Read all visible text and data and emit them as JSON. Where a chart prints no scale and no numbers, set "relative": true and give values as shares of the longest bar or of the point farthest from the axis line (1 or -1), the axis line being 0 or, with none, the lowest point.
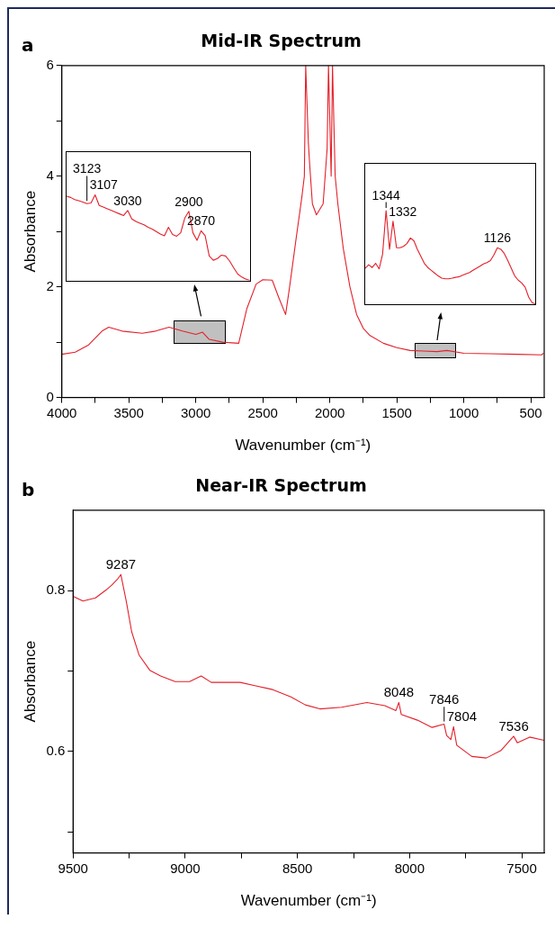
{
  "chart_data": [
    {
      "type": "line",
      "title": "Mid-IR Spectrum",
      "annotations": [
        "a"
      ],
      "xlabel": "Wavenumber (cm⁻¹)",
      "ylabel": "Absorbance",
      "marker": "none",
      "x": [
        4000,
        3900,
        3800,
        3700,
        3650,
        3550,
        3400,
        3300,
        3200,
        3100,
        3000,
        2950,
        2900,
        2800,
        2680,
        2620,
        2550,
        2500,
        2430,
        2380,
        2330,
        2300,
        2250,
        2210,
        2190,
        2180,
        2160,
        2150,
        2130,
        2100,
        2050,
        2020,
        2010,
        1990,
        1980,
        1960,
        1940,
        1900,
        1850,
        1800,
        1750,
        1700,
        1600,
        1500,
        1400,
        1300,
        1200,
        1126,
        1000,
        800,
        600,
        420,
        405
      ],
      "series": [
        {
          "color": "#e4202a",
          "values": [
            0.78,
            0.82,
            0.95,
            1.2,
            1.27,
            1.2,
            1.16,
            1.2,
            1.27,
            1.2,
            1.14,
            1.18,
            1.05,
            1.0,
            0.98,
            1.6,
            2.05,
            2.13,
            2.12,
            1.8,
            1.5,
            2.0,
            2.9,
            3.6,
            4.0,
            6,
            4.6,
            4.2,
            3.5,
            3.3,
            3.5,
            4.5,
            6,
            4.0,
            6,
            4.0,
            3.5,
            2.7,
            2.0,
            1.5,
            1.25,
            1.12,
            0.98,
            0.9,
            0.85,
            0.84,
            0.83,
            0.85,
            0.8,
            0.79,
            0.78,
            0.77,
            0.8
          ]
        }
      ],
      "xlim": [
        4000,
        400
      ],
      "ylim": [
        0,
        6
      ],
      "xticks": [
        4000,
        {
          "value": 3750,
          "label": null
        },
        3500,
        {
          "value": 3250,
          "label": null
        },
        3000,
        {
          "value": 2750,
          "label": null
        },
        2500,
        {
          "value": 2250,
          "label": null
        },
        2000,
        {
          "value": 1750,
          "label": null
        },
        1500,
        {
          "value": 1250,
          "label": null
        },
        1000,
        {
          "value": 750,
          "label": null
        },
        500
      ],
      "yticks": [
        0,
        {
          "value": 1,
          "label": null
        },
        2,
        {
          "value": 3,
          "label": null
        },
        4,
        {
          "value": 5,
          "label": null
        },
        6
      ]
    },
    {
      "type": "line",
      "relative": true,
      "marker": "none",
      "categories": [
        null,
        null,
        null,
        null,
        null,
        null,
        null,
        null,
        null,
        null,
        null,
        null,
        null,
        null,
        null,
        null,
        null,
        null,
        null,
        null,
        null,
        null,
        null,
        null,
        null,
        null,
        null,
        null,
        null,
        null,
        null,
        null,
        null,
        null,
        null,
        null,
        null,
        null,
        null,
        null,
        null,
        null,
        null,
        null,
        null,
        null
      ],
      "series": [
        {
          "color": "#e4202a",
          "values": [
            0.985,
            0.97,
            0.946,
            0.931,
            0.916,
            0.897,
            0.906,
            1,
            0.877,
            0.857,
            0.837,
            0.818,
            0.798,
            0.778,
            0.759,
            0.818,
            0.719,
            0.69,
            0.67,
            0.65,
            0.621,
            0.601,
            0.571,
            0.542,
            0.522,
            0.621,
            0.537,
            0.517,
            0.557,
            0.729,
            0.808,
            0.557,
            0.468,
            0.581,
            0.522,
            0.286,
            0.236,
            0.256,
            0.296,
            0.286,
            0.227,
            0.148,
            0.074,
            0.039,
            0.015,
            0
          ]
        }
      ],
      "annotations": [
        "3123",
        "3107",
        "3030",
        "2900",
        "2870"
      ]
    },
    {
      "type": "line",
      "relative": true,
      "marker": "none",
      "categories": [
        null,
        null,
        null,
        null,
        null,
        null,
        null,
        null,
        null,
        null,
        null,
        null,
        null,
        null,
        null,
        null,
        null,
        null,
        null,
        null,
        null,
        null,
        null,
        null,
        null,
        null,
        null,
        null,
        null,
        null,
        null,
        null,
        null,
        null,
        null,
        null,
        null,
        null,
        null,
        null,
        null,
        null,
        null,
        null,
        null,
        null,
        null,
        null,
        null,
        null
      ],
      "series": [
        {
          "color": "#e4202a",
          "values": [
            0.383,
            0.421,
            0.391,
            0.436,
            0.376,
            0.534,
            1,
            0.586,
            0.887,
            0.602,
            0.602,
            0.617,
            0.647,
            0.707,
            0.677,
            0.586,
            0.511,
            0.436,
            0.391,
            0.361,
            0.331,
            0.301,
            0.278,
            0.271,
            0.271,
            0.278,
            0.286,
            0.293,
            0.308,
            0.323,
            0.338,
            0.361,
            0.383,
            0.406,
            0.429,
            0.444,
            0.466,
            0.526,
            0.602,
            0.586,
            0.541,
            0.466,
            0.383,
            0.301,
            0.256,
            0.226,
            0.18,
            0.075,
            0.015,
            0
          ]
        }
      ],
      "annotations": [
        "1344",
        "1332",
        "1126"
      ]
    },
    {
      "type": "line",
      "title": "Near-IR Spectrum",
      "xlabel": "Wavenumber (cm⁻¹)",
      "ylabel": "Absorbance",
      "marker": "none",
      "annotations": [
        "b",
        {
          "text": "9287",
          "x": 9287,
          "y": 0.82
        },
        {
          "text": "8048",
          "x": 8048,
          "y": 0.661
        },
        {
          "text": "7846",
          "x": 7846,
          "y": 0.634
        },
        {
          "text": "7804",
          "x": 7804,
          "y": 0.631
        },
        {
          "text": "7536",
          "x": 7536,
          "y": 0.619
        }
      ],
      "x": [
        9500,
        9456,
        9400,
        9352,
        9327,
        9300,
        9287,
        9263,
        9239,
        9206,
        9158,
        9110,
        9045,
        8981,
        8929,
        8884,
        8819,
        8755,
        8690,
        8610,
        8529,
        8465,
        8400,
        8303,
        8190,
        8110,
        8061,
        8048,
        8037,
        7965,
        7900,
        7846,
        7835,
        7816,
        7804,
        7790,
        7723,
        7658,
        7594,
        7536,
        7520,
        7465,
        7400
      ],
      "series": [
        {
          "color": "#e4202a",
          "values": [
            0.793,
            0.787,
            0.791,
            0.801,
            0.807,
            0.815,
            0.82,
            0.787,
            0.749,
            0.72,
            0.701,
            0.694,
            0.687,
            0.687,
            0.694,
            0.686,
            0.686,
            0.686,
            0.682,
            0.677,
            0.668,
            0.658,
            0.653,
            0.655,
            0.661,
            0.657,
            0.651,
            0.661,
            0.646,
            0.639,
            0.63,
            0.634,
            0.62,
            0.615,
            0.631,
            0.608,
            0.594,
            0.592,
            0.601,
            0.619,
            0.611,
            0.618,
            0.614
          ]
        }
      ],
      "xlim": [
        9500,
        7400
      ],
      "ylim": [
        0.474,
        0.9
      ],
      "xticks": [
        9500,
        {
          "value": 9250,
          "label": null
        },
        9000,
        {
          "value": 8750,
          "label": null
        },
        8500,
        {
          "value": 8250,
          "label": null
        },
        8000,
        {
          "value": 7750,
          "label": null
        },
        7500
      ],
      "yticks": [
        {
          "value": 0.5,
          "label": null
        },
        0.6,
        {
          "value": 0.7,
          "label": null
        },
        0.8
      ]
    }
  ]
}
